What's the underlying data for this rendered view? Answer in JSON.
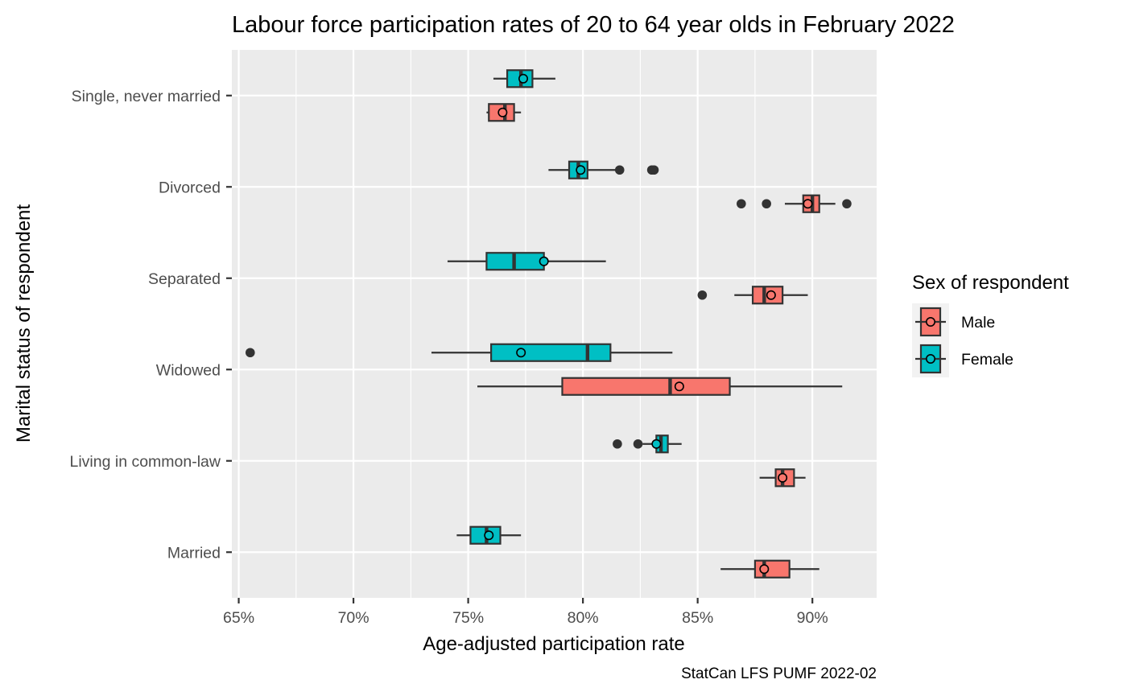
{
  "chart_data": {
    "type": "boxplot",
    "orientation": "horizontal",
    "title": "Labour force participation rates of 20 to 64 year olds in February 2022",
    "xlabel": "Age-adjusted participation rate",
    "ylabel": "Marital status of respondent",
    "caption": "StatCan LFS PUMF 2022-02",
    "xlim": [
      64.7,
      92.8
    ],
    "x_ticks": [
      {
        "value": 65,
        "label": "65%"
      },
      {
        "value": 70,
        "label": "70%"
      },
      {
        "value": 75,
        "label": "75%"
      },
      {
        "value": 80,
        "label": "80%"
      },
      {
        "value": 85,
        "label": "85%"
      },
      {
        "value": 90,
        "label": "90%"
      }
    ],
    "categories": [
      "Single, never married",
      "Divorced",
      "Separated",
      "Widowed",
      "Living in common-law",
      "Married"
    ],
    "legend": {
      "title": "Sex of respondent",
      "position": "right",
      "entries": [
        {
          "name": "Male",
          "color": "#F8766D"
        },
        {
          "name": "Female",
          "color": "#00BFC4"
        }
      ]
    },
    "series": [
      {
        "name": "Male",
        "color": "#F8766D",
        "boxes": [
          {
            "category": "Single, never married",
            "whisker_low": 75.8,
            "q1": 75.9,
            "median": 76.6,
            "q3": 77.0,
            "whisker_high": 77.3,
            "mean": 76.5,
            "outliers": []
          },
          {
            "category": "Divorced",
            "whisker_low": 88.8,
            "q1": 89.6,
            "median": 90.0,
            "q3": 90.3,
            "whisker_high": 91.0,
            "mean": 89.8,
            "outliers": [
              86.9,
              88.0,
              91.5
            ]
          },
          {
            "category": "Separated",
            "whisker_low": 86.6,
            "q1": 87.4,
            "median": 87.9,
            "q3": 88.7,
            "whisker_high": 89.8,
            "mean": 88.2,
            "outliers": [
              85.2
            ]
          },
          {
            "category": "Widowed",
            "whisker_low": 75.4,
            "q1": 79.1,
            "median": 83.8,
            "q3": 86.4,
            "whisker_high": 91.3,
            "mean": 84.2,
            "outliers": []
          },
          {
            "category": "Living in common-law",
            "whisker_low": 87.7,
            "q1": 88.4,
            "median": 88.7,
            "q3": 89.2,
            "whisker_high": 89.7,
            "mean": 88.7,
            "outliers": []
          },
          {
            "category": "Married",
            "whisker_low": 86.0,
            "q1": 87.5,
            "median": 87.9,
            "q3": 89.0,
            "whisker_high": 90.3,
            "mean": 87.9,
            "outliers": []
          }
        ]
      },
      {
        "name": "Female",
        "color": "#00BFC4",
        "boxes": [
          {
            "category": "Single, never married",
            "whisker_low": 76.1,
            "q1": 76.7,
            "median": 77.3,
            "q3": 77.8,
            "whisker_high": 78.8,
            "mean": 77.4,
            "outliers": []
          },
          {
            "category": "Divorced",
            "whisker_low": 78.5,
            "q1": 79.4,
            "median": 79.8,
            "q3": 80.2,
            "whisker_high": 81.4,
            "mean": 79.9,
            "outliers": [
              81.6,
              83.0,
              83.1
            ]
          },
          {
            "category": "Separated",
            "whisker_low": 74.1,
            "q1": 75.8,
            "median": 77.0,
            "q3": 78.3,
            "whisker_high": 81.0,
            "mean": 78.3,
            "outliers": []
          },
          {
            "category": "Widowed",
            "whisker_low": 73.4,
            "q1": 76.0,
            "median": 80.2,
            "q3": 81.2,
            "whisker_high": 83.9,
            "mean": 77.3,
            "outliers": [
              65.5
            ]
          },
          {
            "category": "Living in common-law",
            "whisker_low": 82.6,
            "q1": 83.2,
            "median": 83.4,
            "q3": 83.7,
            "whisker_high": 84.3,
            "mean": 83.2,
            "outliers": [
              81.5,
              82.4
            ]
          },
          {
            "category": "Married",
            "whisker_low": 74.5,
            "q1": 75.1,
            "median": 75.8,
            "q3": 76.4,
            "whisker_high": 77.3,
            "mean": 75.9,
            "outliers": []
          }
        ]
      }
    ]
  }
}
